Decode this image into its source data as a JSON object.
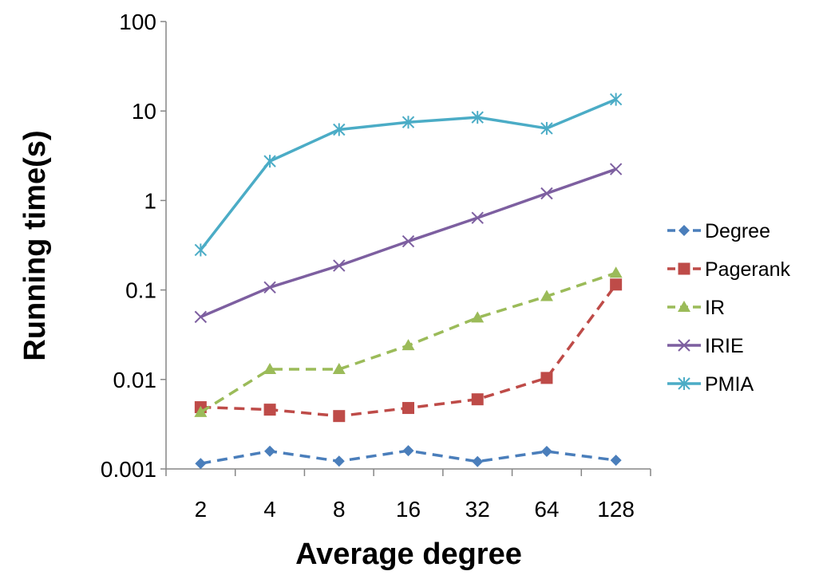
{
  "chart_data": {
    "type": "line",
    "title": "",
    "xlabel": "Average degree",
    "ylabel": "Running time(s)",
    "yscale": "log",
    "ylim": [
      0.001,
      100
    ],
    "ytick_labels": [
      "100",
      "10",
      "1",
      "0.1",
      "0.01",
      "0.001"
    ],
    "ytick_values": [
      100,
      10,
      1,
      0.1,
      0.01,
      0.001
    ],
    "categories": [
      "2",
      "4",
      "8",
      "16",
      "32",
      "64",
      "128"
    ],
    "legend_position": "right",
    "series": [
      {
        "name": "Degree",
        "color": "#4a7ebb",
        "marker": "diamond",
        "dashed": true,
        "values": [
          0.00115,
          0.00158,
          0.00122,
          0.0016,
          0.00121,
          0.00157,
          0.00125
        ]
      },
      {
        "name": "Pagerank",
        "color": "#be4b48",
        "marker": "square",
        "dashed": true,
        "values": [
          0.0049,
          0.0046,
          0.0039,
          0.0048,
          0.006,
          0.0104,
          0.115
        ]
      },
      {
        "name": "IR",
        "color": "#9bbb59",
        "marker": "triangle",
        "dashed": true,
        "values": [
          0.0043,
          0.013,
          0.013,
          0.024,
          0.049,
          0.085,
          0.155
        ]
      },
      {
        "name": "IRIE",
        "color": "#7d5fa0",
        "marker": "x",
        "dashed": false,
        "values": [
          0.05,
          0.107,
          0.187,
          0.35,
          0.64,
          1.2,
          2.24
        ]
      },
      {
        "name": "PMIA",
        "color": "#4bacc6",
        "marker": "star",
        "dashed": false,
        "values": [
          0.28,
          2.75,
          6.2,
          7.5,
          8.5,
          6.4,
          13.5
        ]
      }
    ]
  }
}
